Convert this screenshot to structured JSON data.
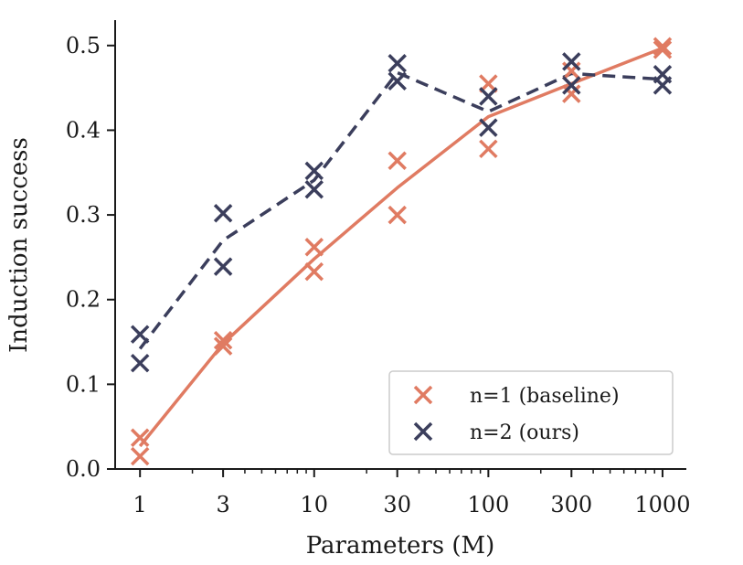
{
  "chart_data": {
    "type": "line",
    "xscale": "log",
    "xlabel": "Parameters (M)",
    "ylabel": "Induction success",
    "xlim": [
      0.72,
      1370
    ],
    "ylim": [
      0.0,
      0.53
    ],
    "xticks": [
      1,
      3,
      10,
      30,
      100,
      300,
      1000
    ],
    "xtick_labels": [
      "1",
      "3",
      "10",
      "30",
      "100",
      "300",
      "1000"
    ],
    "yticks": [
      0.0,
      0.1,
      0.2,
      0.3,
      0.4,
      0.5
    ],
    "ytick_labels": [
      "0.0",
      "0.1",
      "0.2",
      "0.3",
      "0.4",
      "0.5"
    ],
    "legend_position": "lower-right",
    "series": [
      {
        "name": "n=1 (baseline)",
        "color": "#E07B62",
        "line_style": "solid",
        "line_x": [
          1,
          3,
          10,
          30,
          100,
          300,
          1000
        ],
        "line_y": [
          0.027,
          0.148,
          0.248,
          0.332,
          0.416,
          0.455,
          0.497
        ],
        "points": [
          {
            "x": 1,
            "y": 0.037
          },
          {
            "x": 1,
            "y": 0.015
          },
          {
            "x": 3,
            "y": 0.152
          },
          {
            "x": 3,
            "y": 0.145
          },
          {
            "x": 10,
            "y": 0.262
          },
          {
            "x": 10,
            "y": 0.233
          },
          {
            "x": 30,
            "y": 0.364
          },
          {
            "x": 30,
            "y": 0.3
          },
          {
            "x": 100,
            "y": 0.455
          },
          {
            "x": 100,
            "y": 0.378
          },
          {
            "x": 300,
            "y": 0.47
          },
          {
            "x": 300,
            "y": 0.443
          },
          {
            "x": 1000,
            "y": 0.499
          },
          {
            "x": 1000,
            "y": 0.495
          }
        ]
      },
      {
        "name": "n=2 (ours)",
        "color": "#3B3E5C",
        "line_style": "dashed",
        "line_x": [
          1,
          3,
          10,
          30,
          100,
          300,
          1000
        ],
        "line_y": [
          0.142,
          0.27,
          0.341,
          0.468,
          0.422,
          0.467,
          0.46
        ],
        "points": [
          {
            "x": 1,
            "y": 0.159
          },
          {
            "x": 1,
            "y": 0.125
          },
          {
            "x": 3,
            "y": 0.302
          },
          {
            "x": 3,
            "y": 0.239
          },
          {
            "x": 10,
            "y": 0.352
          },
          {
            "x": 10,
            "y": 0.33
          },
          {
            "x": 30,
            "y": 0.479
          },
          {
            "x": 30,
            "y": 0.458
          },
          {
            "x": 100,
            "y": 0.44
          },
          {
            "x": 100,
            "y": 0.403
          },
          {
            "x": 300,
            "y": 0.481
          },
          {
            "x": 300,
            "y": 0.453
          },
          {
            "x": 1000,
            "y": 0.466
          },
          {
            "x": 1000,
            "y": 0.453
          }
        ]
      }
    ]
  }
}
